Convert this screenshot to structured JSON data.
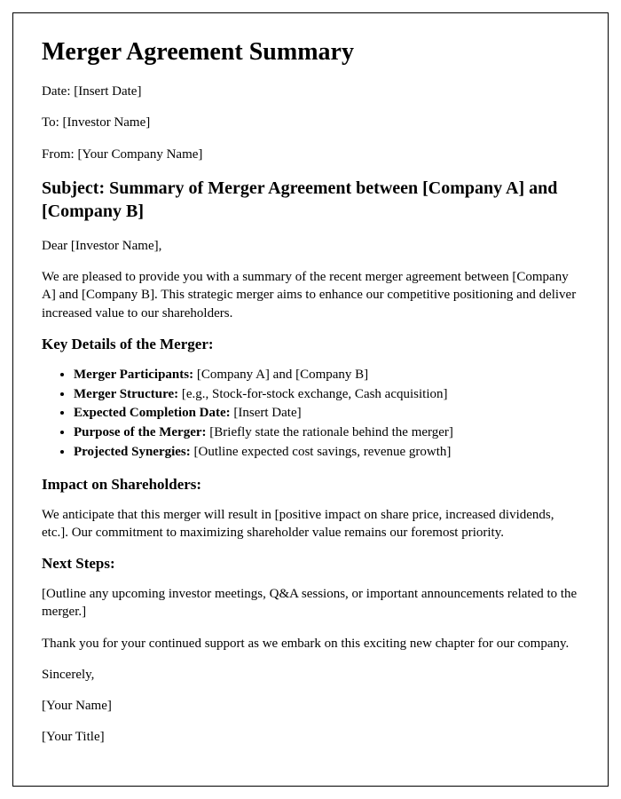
{
  "title": "Merger Agreement Summary",
  "meta": {
    "date_label": "Date: ",
    "date_value": "[Insert Date]",
    "to_label": "To: ",
    "to_value": "[Investor Name]",
    "from_label": "From: ",
    "from_value": "[Your Company Name]"
  },
  "subject": "Subject: Summary of Merger Agreement between [Company A] and [Company B]",
  "salutation": "Dear [Investor Name],",
  "intro": "We are pleased to provide you with a summary of the recent merger agreement between [Company A] and [Company B]. This strategic merger aims to enhance our competitive positioning and deliver increased value to our shareholders.",
  "key_details_heading": "Key Details of the Merger:",
  "key_details": [
    {
      "label": "Merger Participants: ",
      "value": "[Company A] and [Company B]"
    },
    {
      "label": "Merger Structure: ",
      "value": "[e.g., Stock-for-stock exchange, Cash acquisition]"
    },
    {
      "label": "Expected Completion Date: ",
      "value": "[Insert Date]"
    },
    {
      "label": "Purpose of the Merger: ",
      "value": "[Briefly state the rationale behind the merger]"
    },
    {
      "label": "Projected Synergies: ",
      "value": "[Outline expected cost savings, revenue growth]"
    }
  ],
  "impact_heading": "Impact on Shareholders:",
  "impact_text": "We anticipate that this merger will result in [positive impact on share price, increased dividends, etc.]. Our commitment to maximizing shareholder value remains our foremost priority.",
  "next_steps_heading": "Next Steps:",
  "next_steps_text": "[Outline any upcoming investor meetings, Q&A sessions, or important announcements related to the merger.]",
  "thanks": "Thank you for your continued support as we embark on this exciting new chapter for our company.",
  "closing": "Sincerely,",
  "signer_name": "[Your Name]",
  "signer_title": "[Your Title]"
}
